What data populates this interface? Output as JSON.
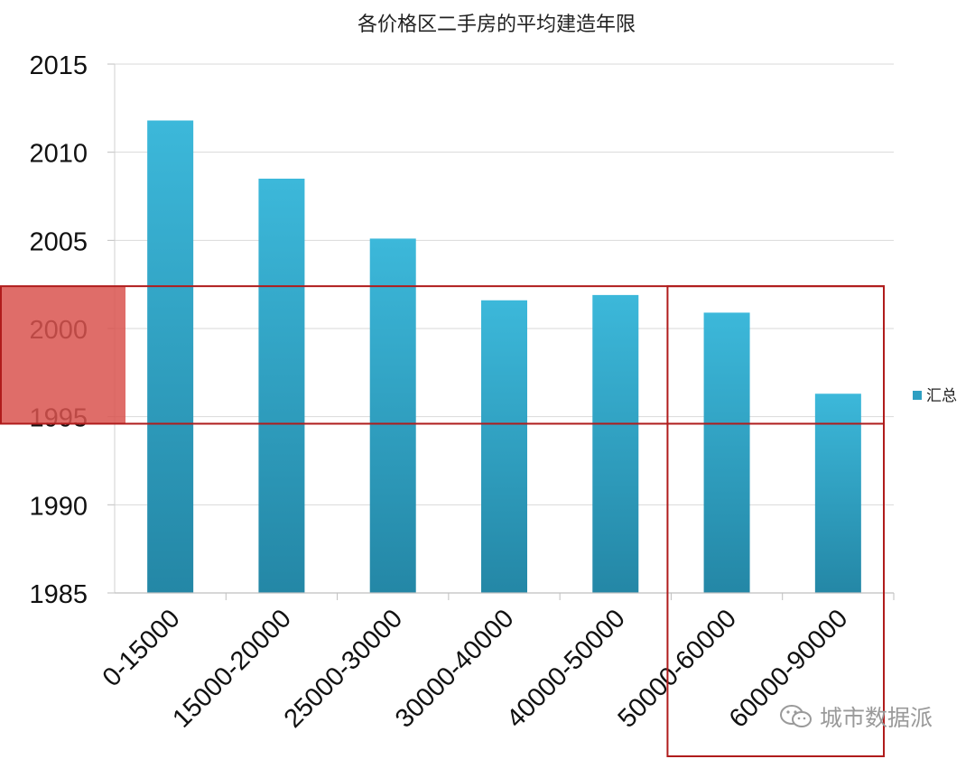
{
  "chart_data": {
    "type": "bar",
    "title": "各价格区二手房的平均建造年限",
    "categories": [
      "0-15000",
      "15000-20000",
      "25000-30000",
      "30000-40000",
      "40000-50000",
      "50000-60000",
      "60000-90000"
    ],
    "series": [
      {
        "name": "汇总",
        "values": [
          2011.8,
          2008.5,
          2005.1,
          2001.6,
          2001.9,
          2000.9,
          1996.3
        ]
      }
    ],
    "ylim": [
      1985,
      2015
    ],
    "y_ticks": [
      "1985",
      "1990",
      "1995",
      "2000",
      "2005",
      "2010",
      "2015"
    ],
    "xlabel": "",
    "ylabel": "",
    "grid": true,
    "legend_position": "right",
    "bar_color": "#2e9fc2",
    "highlight_color": "#b01c1c"
  },
  "watermark": {
    "text": "城市数据派",
    "icon": "wechat-icon"
  }
}
